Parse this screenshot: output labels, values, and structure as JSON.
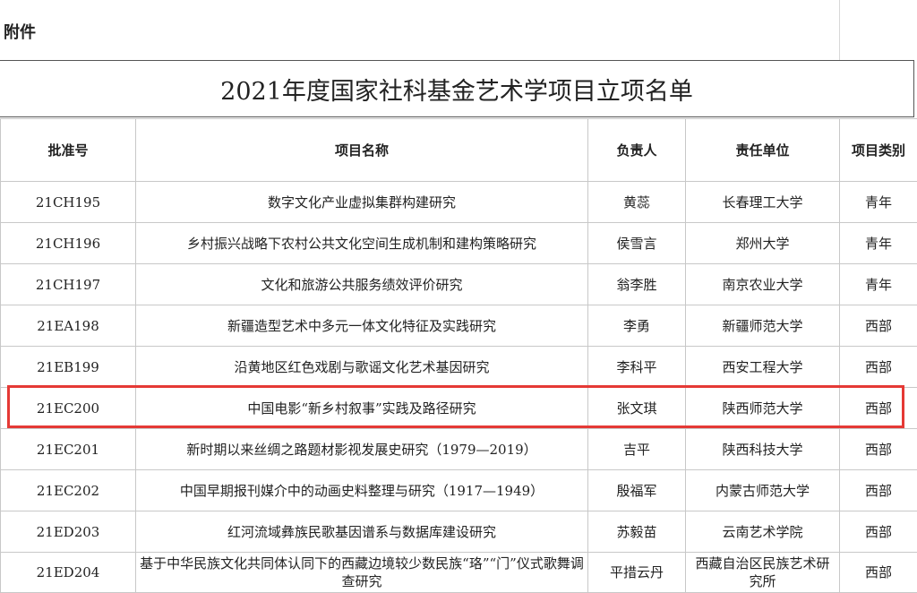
{
  "attachment_label": "附件",
  "title": "2021年度国家社科基金艺术学项目立项名单",
  "columns": [
    "批准号",
    "项目名称",
    "负责人",
    "责任单位",
    "项目类别"
  ],
  "rows": [
    [
      "21CH195",
      "数字文化产业虚拟集群构建研究",
      "黄蕊",
      "长春理工大学",
      "青年"
    ],
    [
      "21CH196",
      "乡村振兴战略下农村公共文化空间生成机制和建构策略研究",
      "侯雪言",
      "郑州大学",
      "青年"
    ],
    [
      "21CH197",
      "文化和旅游公共服务绩效评价研究",
      "翁李胜",
      "南京农业大学",
      "青年"
    ],
    [
      "21EA198",
      "新疆造型艺术中多元一体文化特征及实践研究",
      "李勇",
      "新疆师范大学",
      "西部"
    ],
    [
      "21EB199",
      "沿黄地区红色戏剧与歌谣文化艺术基因研究",
      "李科平",
      "西安工程大学",
      "西部"
    ],
    [
      "21EC200",
      "中国电影“新乡村叙事”实践及路径研究",
      "张文琪",
      "陕西师范大学",
      "西部"
    ],
    [
      "21EC201",
      "新时期以来丝绸之路题材影视发展史研究（1979—2019）",
      "吉平",
      "陕西科技大学",
      "西部"
    ],
    [
      "21EC202",
      "中国早期报刊媒介中的动画史料整理与研究（1917—1949）",
      "殷福军",
      "内蒙古师范大学",
      "西部"
    ],
    [
      "21ED203",
      "红河流域彝族民歌基因谱系与数据库建设研究",
      "苏毅苗",
      "云南艺术学院",
      "西部"
    ],
    [
      "21ED204",
      "基于中华民族文化共同体认同下的西藏边境较少数民族“珞”“门”仪式歌舞调查研究",
      "平措云丹",
      "西藏自治区民族艺术研究所",
      "西部"
    ]
  ],
  "highlighted_row": 5,
  "highlight_color": "#e53935"
}
